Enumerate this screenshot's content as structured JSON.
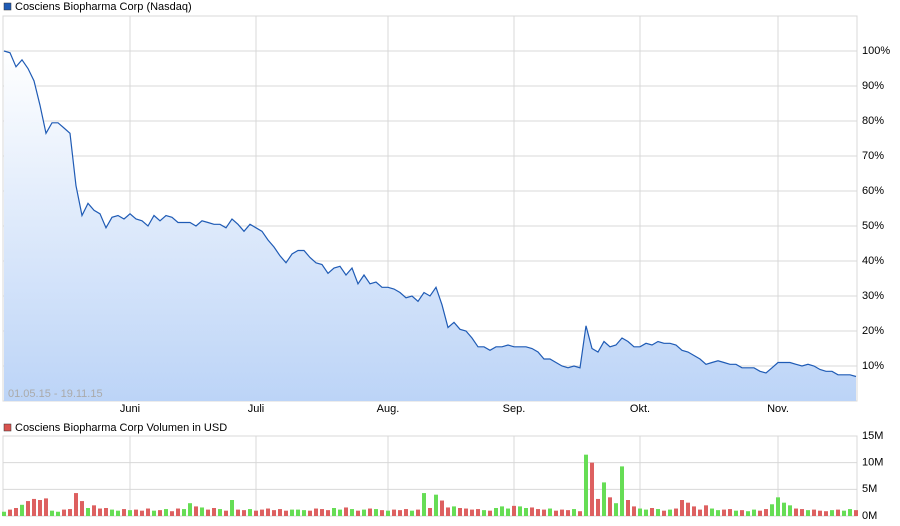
{
  "chart_data": [
    {
      "type": "area",
      "date_range": "01.05.15 - 19.11.15",
      "categories": [
        null,
        null,
        null,
        null,
        null,
        null,
        null,
        null,
        null,
        null,
        null,
        null,
        null,
        null,
        null,
        null,
        null,
        null,
        null,
        null,
        null,
        "Juni",
        null,
        null,
        null,
        null,
        null,
        null,
        null,
        null,
        null,
        null,
        null,
        null,
        null,
        null,
        null,
        null,
        null,
        null,
        null,
        null,
        "Juli",
        null,
        null,
        null,
        null,
        null,
        null,
        null,
        null,
        null,
        null,
        null,
        null,
        null,
        null,
        null,
        null,
        null,
        null,
        null,
        null,
        null,
        "Aug.",
        null,
        null,
        null,
        null,
        null,
        null,
        null,
        null,
        null,
        null,
        null,
        null,
        null,
        null,
        null,
        null,
        null,
        null,
        null,
        null,
        "Sep.",
        null,
        null,
        null,
        null,
        null,
        null,
        null,
        null,
        null,
        null,
        null,
        null,
        null,
        null,
        null,
        null,
        null,
        null,
        null,
        null,
        "Okt.",
        null,
        null,
        null,
        null,
        null,
        null,
        null,
        null,
        null,
        null,
        null,
        null,
        null,
        null,
        null,
        null,
        null,
        null,
        null,
        null,
        null,
        null,
        "Nov.",
        null,
        null,
        null,
        null,
        null,
        null,
        null,
        null,
        null,
        null,
        null,
        null,
        null
      ],
      "series": [
        {
          "name": "Cosciens Biopharma Corp (Nasdaq)",
          "color": "#1f5bb5",
          "values": [
            100,
            99.5,
            95.5,
            97.5,
            95,
            91.5,
            84.5,
            76.5,
            79.5,
            79.5,
            78,
            76.5,
            61.5,
            53,
            56.5,
            54.5,
            53.5,
            49.5,
            52.5,
            53,
            52,
            53.5,
            52,
            51.5,
            50,
            53,
            51.5,
            53,
            52.5,
            51,
            51,
            51,
            50,
            51.5,
            51,
            50.5,
            50.5,
            49.5,
            52,
            50.5,
            48.5,
            50.5,
            49.5,
            48.5,
            46,
            44,
            41.5,
            39.5,
            42,
            43,
            43,
            41,
            39.5,
            39,
            36.5,
            38,
            38.5,
            36,
            38,
            33.5,
            36,
            33.5,
            34,
            32.5,
            32.5,
            32,
            31,
            29.5,
            30,
            28.5,
            31,
            30,
            32.5,
            27.5,
            21,
            22.5,
            20.5,
            20,
            18,
            15.5,
            15.5,
            14.5,
            15.5,
            15.5,
            16,
            15.5,
            15.5,
            15.5,
            15,
            14,
            12,
            12,
            11,
            10,
            9.5,
            10,
            9.5,
            21.5,
            15,
            14,
            17,
            15.5,
            16,
            18,
            17,
            15.5,
            15.5,
            16.5,
            16,
            17,
            16.5,
            16.5,
            16,
            14.5,
            14,
            13,
            12,
            10.5,
            11,
            11.5,
            11,
            10.5,
            10.5,
            9.5,
            9.5,
            9.5,
            8.5,
            8,
            9.5,
            11,
            11,
            11,
            10.5,
            10,
            10.5,
            10,
            9,
            8.5,
            8.5,
            7.5,
            7.5,
            7.5,
            7
          ]
        }
      ],
      "ylim": [
        0,
        110
      ],
      "yticks": [
        {
          "value": 10,
          "label": "10%"
        },
        {
          "value": 20,
          "label": "20%"
        },
        {
          "value": 30,
          "label": "30%"
        },
        {
          "value": 40,
          "label": "40%"
        },
        {
          "value": 50,
          "label": "50%"
        },
        {
          "value": 60,
          "label": "60%"
        },
        {
          "value": 70,
          "label": "70%"
        },
        {
          "value": 80,
          "label": "80%"
        },
        {
          "value": 90,
          "label": "90%"
        },
        {
          "value": 100,
          "label": "100%"
        }
      ],
      "grid": true
    },
    {
      "type": "bar",
      "series": [
        {
          "name": "Cosciens Biopharma Corp Volumen in USD",
          "color": "#d9534f",
          "up_color": "#66dd55",
          "down_color": "#dd6060",
          "values": [
            0.8,
            1.2,
            1.5,
            2.1,
            2.8,
            3.2,
            3.0,
            3.3,
            1.0,
            0.8,
            1.2,
            1.3,
            4.3,
            2.8,
            1.5,
            2.0,
            1.4,
            1.5,
            1.2,
            1.0,
            1.3,
            1.1,
            1.2,
            1.0,
            1.4,
            1.0,
            1.1,
            1.3,
            0.9,
            1.4,
            1.3,
            2.4,
            1.8,
            1.6,
            1.2,
            1.5,
            1.3,
            1.0,
            3.0,
            1.2,
            1.1,
            1.3,
            1.0,
            1.2,
            1.4,
            1.1,
            1.3,
            1.0,
            1.2,
            1.2,
            1.1,
            1.0,
            1.4,
            1.3,
            1.1,
            1.5,
            1.2,
            1.6,
            1.3,
            1.0,
            1.2,
            1.4,
            1.3,
            1.1,
            1.0,
            1.2,
            1.1,
            1.3,
            1.0,
            1.2,
            4.3,
            1.5,
            4.0,
            2.9,
            1.6,
            1.8,
            1.5,
            1.4,
            1.2,
            1.3,
            1.1,
            1.0,
            1.5,
            1.8,
            1.4,
            1.9,
            1.8,
            1.5,
            1.6,
            1.3,
            1.2,
            1.4,
            1.0,
            1.2,
            1.1,
            1.3,
            0.9,
            11.5,
            10.0,
            3.2,
            6.3,
            3.5,
            2.4,
            9.3,
            3.0,
            1.8,
            1.4,
            1.2,
            1.5,
            1.3,
            1.0,
            1.2,
            1.4,
            3.0,
            2.5,
            1.8,
            1.2,
            2.0,
            1.4,
            1.1,
            1.2,
            1.3,
            1.0,
            1.1,
            0.9,
            1.2,
            1.0,
            1.3,
            2.2,
            3.5,
            2.5,
            2.0,
            1.4,
            1.3,
            1.1,
            1.2,
            1.0,
            0.9,
            1.1,
            1.2,
            1.0,
            1.3,
            1.1
          ]
        }
      ],
      "ylim": [
        0,
        15
      ],
      "yticks": [
        {
          "value": 0,
          "label": "0M"
        },
        {
          "value": 5,
          "label": "5M"
        },
        {
          "value": 10,
          "label": "10M"
        },
        {
          "value": 15,
          "label": "15M"
        }
      ],
      "grid": true
    }
  ]
}
